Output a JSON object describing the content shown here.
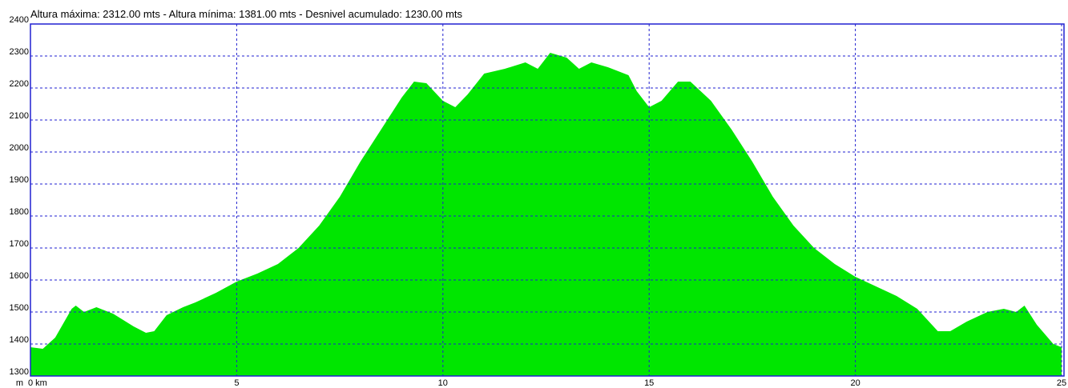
{
  "chart_data": {
    "type": "area",
    "title": "Altura máxima: 2312.00 mts - Altura mínima: 1381.00 mts - Desnivel acumulado: 1230.00 mts",
    "y_label": "m",
    "x": [
      0,
      0.3,
      0.6,
      1.0,
      1.1,
      1.3,
      1.6,
      2.0,
      2.5,
      2.8,
      3.0,
      3.3,
      3.7,
      4.0,
      4.5,
      5.0,
      5.5,
      6.0,
      6.5,
      7.0,
      7.5,
      8.0,
      8.5,
      9.0,
      9.3,
      9.6,
      10.0,
      10.3,
      10.6,
      11.0,
      11.5,
      12.0,
      12.3,
      12.6,
      13.0,
      13.3,
      13.6,
      14.0,
      14.5,
      14.7,
      15.0,
      15.3,
      15.7,
      16.0,
      16.5,
      17.0,
      17.5,
      18.0,
      18.5,
      19.0,
      19.5,
      20.0,
      20.5,
      21.0,
      21.5,
      22.0,
      22.3,
      22.7,
      23.2,
      23.6,
      23.9,
      24.1,
      24.4,
      24.8,
      25.0
    ],
    "values": [
      1390,
      1385,
      1420,
      1510,
      1520,
      1500,
      1515,
      1495,
      1455,
      1435,
      1440,
      1490,
      1515,
      1530,
      1560,
      1595,
      1620,
      1650,
      1700,
      1770,
      1860,
      1970,
      2070,
      2170,
      2220,
      2215,
      2160,
      2140,
      2180,
      2245,
      2260,
      2280,
      2260,
      2310,
      2295,
      2260,
      2280,
      2265,
      2240,
      2190,
      2140,
      2160,
      2220,
      2220,
      2160,
      2070,
      1970,
      1860,
      1770,
      1700,
      1650,
      1610,
      1580,
      1550,
      1510,
      1440,
      1440,
      1470,
      1500,
      1510,
      1500,
      1520,
      1460,
      1400,
      1390
    ],
    "color": "#00e600",
    "xlim": [
      0,
      25
    ],
    "ylim": [
      1300,
      2400
    ],
    "xticks": [
      {
        "value": 0,
        "label": "0 km"
      },
      5,
      10,
      15,
      20,
      25
    ],
    "yticks": [
      1300,
      1400,
      1500,
      1600,
      1700,
      1800,
      1900,
      2000,
      2100,
      2200,
      2300,
      2400
    ],
    "grid": true,
    "grid_color": "#2020d0"
  }
}
